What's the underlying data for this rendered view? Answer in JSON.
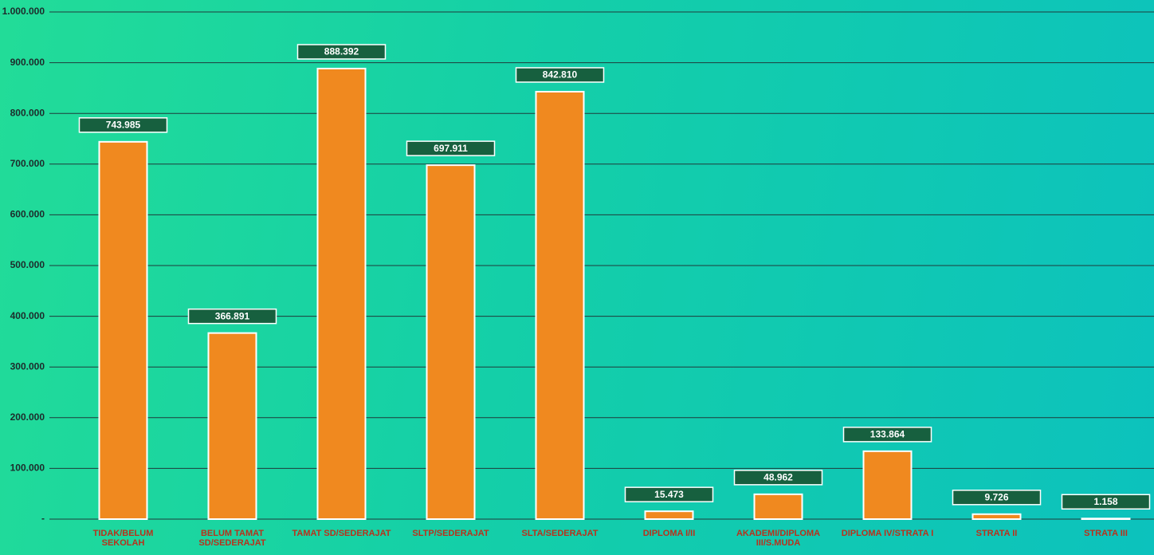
{
  "chart_data": {
    "type": "bar",
    "categories": [
      "TIDAK/BELUM SEKOLAH",
      "BELUM TAMAT SD/SEDERAJAT",
      "TAMAT SD/SEDERAJAT",
      "SLTP/SEDERAJAT",
      "SLTA/SEDERAJAT",
      "DIPLOMA I/II",
      "AKADEMI/DIPLOMA III/S.MUDA",
      "DIPLOMA IV/STRATA I",
      "STRATA II",
      "STRATA III"
    ],
    "values": [
      743985,
      366891,
      888392,
      697911,
      842810,
      15473,
      48962,
      133864,
      9726,
      1158
    ],
    "value_labels": [
      "743.985",
      "366.891",
      "888.392",
      "697.911",
      "842.810",
      "15.473",
      "48.962",
      "133.864",
      "9.726",
      "1.158"
    ],
    "color": "#f0891f",
    "ylim": [
      0,
      1000000
    ],
    "yticks": [
      {
        "value": 0,
        "label": "-"
      },
      {
        "value": 100000,
        "label": "100.000"
      },
      {
        "value": 200000,
        "label": "200.000"
      },
      {
        "value": 300000,
        "label": "300.000"
      },
      {
        "value": 400000,
        "label": "400.000"
      },
      {
        "value": 500000,
        "label": "500.000"
      },
      {
        "value": 600000,
        "label": "600.000"
      },
      {
        "value": 700000,
        "label": "700.000"
      },
      {
        "value": 800000,
        "label": "800.000"
      },
      {
        "value": 900000,
        "label": "900.000"
      },
      {
        "value": 1000000,
        "label": "1.000.000"
      }
    ],
    "grid": true
  }
}
